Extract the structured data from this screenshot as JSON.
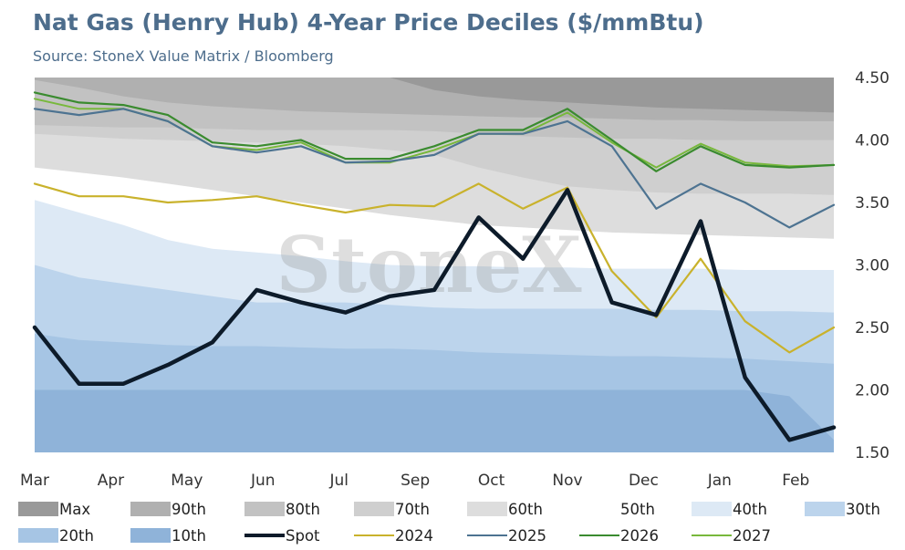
{
  "title": "Nat Gas (Henry Hub) 4-Year Price Deciles ($/mmBtu)",
  "subtitle": "Source: StoneX Value Matrix / Bloomberg",
  "watermark": "StoneX",
  "chart_data": {
    "type": "line",
    "ylim": [
      1.5,
      4.5
    ],
    "y_ticks": [
      "4.50",
      "4.00",
      "3.50",
      "3.00",
      "2.50",
      "2.00",
      "1.50"
    ],
    "y_axis_side": "right",
    "x_ticks": [
      "Mar",
      "Apr",
      "May",
      "Jun",
      "Jul",
      "Sep",
      "Oct",
      "Nov",
      "Dec",
      "Jan",
      "Feb"
    ],
    "grid": false,
    "legend_position": "bottom",
    "x_index": [
      0,
      10,
      20,
      30,
      40,
      50,
      60,
      70,
      80,
      90,
      100,
      110,
      120,
      130,
      140,
      150,
      160,
      170,
      180
    ],
    "bands": [
      {
        "name": "10th",
        "color": "#8fb3d9",
        "values": [
          2.0,
          2.0,
          2.0,
          2.0,
          2.0,
          2.0,
          2.0,
          2.0,
          2.0,
          2.0,
          2.0,
          2.0,
          2.0,
          2.0,
          2.0,
          2.0,
          2.0,
          1.95,
          1.6
        ]
      },
      {
        "name": "20th",
        "color": "#a6c5e4",
        "values": [
          2.45,
          2.4,
          2.38,
          2.36,
          2.35,
          2.35,
          2.34,
          2.33,
          2.33,
          2.32,
          2.3,
          2.29,
          2.28,
          2.27,
          2.27,
          2.26,
          2.25,
          2.23,
          2.21
        ]
      },
      {
        "name": "30th",
        "color": "#bcd4ec",
        "values": [
          3.0,
          2.9,
          2.85,
          2.8,
          2.75,
          2.7,
          2.7,
          2.7,
          2.68,
          2.66,
          2.65,
          2.65,
          2.65,
          2.65,
          2.64,
          2.64,
          2.63,
          2.63,
          2.62
        ]
      },
      {
        "name": "40th",
        "color": "#dde9f5",
        "values": [
          3.52,
          3.42,
          3.32,
          3.2,
          3.13,
          3.1,
          3.07,
          3.03,
          3.0,
          2.99,
          2.99,
          2.98,
          2.98,
          2.97,
          2.97,
          2.97,
          2.96,
          2.96,
          2.96
        ]
      },
      {
        "name": "50th",
        "color": "#ffffff",
        "values": [
          3.78,
          3.74,
          3.7,
          3.65,
          3.6,
          3.55,
          3.5,
          3.45,
          3.4,
          3.36,
          3.32,
          3.3,
          3.28,
          3.26,
          3.25,
          3.24,
          3.23,
          3.22,
          3.21
        ]
      },
      {
        "name": "60th",
        "color": "#dddddd",
        "values": [
          4.05,
          4.03,
          4.01,
          4.0,
          3.99,
          3.98,
          3.97,
          3.95,
          3.92,
          3.88,
          3.78,
          3.7,
          3.63,
          3.6,
          3.58,
          3.57,
          3.57,
          3.57,
          3.56
        ]
      },
      {
        "name": "70th",
        "color": "#cfcfcf",
        "values": [
          4.12,
          4.11,
          4.1,
          4.1,
          4.09,
          4.08,
          4.08,
          4.08,
          4.08,
          4.07,
          4.05,
          4.03,
          4.02,
          4.01,
          4.01,
          4.0,
          4.0,
          4.0,
          4.0
        ]
      },
      {
        "name": "80th",
        "color": "#c2c2c2",
        "values": [
          4.48,
          4.42,
          4.35,
          4.3,
          4.27,
          4.25,
          4.23,
          4.22,
          4.21,
          4.2,
          4.19,
          4.18,
          4.18,
          4.17,
          4.16,
          4.16,
          4.15,
          4.15,
          4.15
        ]
      },
      {
        "name": "90th",
        "color": "#b0b0b0",
        "values": [
          4.5,
          4.5,
          4.5,
          4.5,
          4.5,
          4.5,
          4.5,
          4.5,
          4.5,
          4.4,
          4.35,
          4.32,
          4.3,
          4.28,
          4.26,
          4.25,
          4.24,
          4.23,
          4.22
        ]
      },
      {
        "name": "Max",
        "color": "#999999",
        "values": [
          4.5,
          4.5,
          4.5,
          4.5,
          4.5,
          4.5,
          4.5,
          4.5,
          4.5,
          4.5,
          4.5,
          4.5,
          4.5,
          4.5,
          4.5,
          4.5,
          4.5,
          4.5,
          4.5
        ]
      }
    ],
    "series": [
      {
        "name": "Spot",
        "color": "#0d1b2a",
        "width": 4.5,
        "values": [
          2.5,
          2.05,
          2.05,
          2.2,
          2.38,
          2.8,
          2.7,
          2.62,
          2.75,
          2.8,
          3.38,
          3.05,
          3.6,
          2.7,
          2.6,
          3.35,
          2.1,
          1.6,
          1.7
        ]
      },
      {
        "name": "2024",
        "color": "#c9b22c",
        "width": 2.2,
        "values": [
          3.65,
          3.55,
          3.55,
          3.5,
          3.52,
          3.55,
          3.48,
          3.42,
          3.48,
          3.47,
          3.65,
          3.45,
          3.62,
          2.95,
          2.58,
          3.05,
          2.55,
          2.3,
          2.5
        ]
      },
      {
        "name": "2025",
        "color": "#4d7391",
        "width": 2.2,
        "values": [
          4.25,
          4.2,
          4.25,
          4.15,
          3.95,
          3.9,
          3.95,
          3.82,
          3.83,
          3.88,
          4.05,
          4.05,
          4.15,
          3.95,
          3.45,
          3.65,
          3.5,
          3.3,
          3.48
        ]
      },
      {
        "name": "2026",
        "color": "#3a8b2f",
        "width": 2.2,
        "values": [
          4.38,
          4.3,
          4.28,
          4.2,
          3.98,
          3.95,
          4.0,
          3.85,
          3.85,
          3.95,
          4.08,
          4.08,
          4.25,
          4.0,
          3.75,
          3.95,
          3.8,
          3.78,
          3.8
        ]
      },
      {
        "name": "2027",
        "color": "#78b83c",
        "width": 2.0,
        "values": [
          4.33,
          4.25,
          4.25,
          4.15,
          3.95,
          3.92,
          3.98,
          3.82,
          3.82,
          3.92,
          4.05,
          4.05,
          4.22,
          3.98,
          3.78,
          3.97,
          3.82,
          3.79,
          3.8
        ]
      }
    ]
  },
  "legend": {
    "row1": [
      {
        "name": "Max",
        "kind": "box",
        "color": "#999999"
      },
      {
        "name": "90th",
        "kind": "box",
        "color": "#b0b0b0"
      },
      {
        "name": "80th",
        "kind": "box",
        "color": "#c2c2c2"
      },
      {
        "name": "70th",
        "kind": "box",
        "color": "#cfcfcf"
      },
      {
        "name": "60th",
        "kind": "box",
        "color": "#dddddd"
      },
      {
        "name": "50th",
        "kind": "box",
        "color": "#ffffff"
      },
      {
        "name": "40th",
        "kind": "box",
        "color": "#dde9f5"
      },
      {
        "name": "30th",
        "kind": "box",
        "color": "#bcd4ec"
      }
    ],
    "row2": [
      {
        "name": "20th",
        "kind": "box",
        "color": "#a6c5e4"
      },
      {
        "name": "10th",
        "kind": "box",
        "color": "#8fb3d9"
      },
      {
        "name": "Spot",
        "kind": "line",
        "color": "#0d1b2a"
      },
      {
        "name": "2024",
        "kind": "line",
        "color": "#c9b22c"
      },
      {
        "name": "2025",
        "kind": "line",
        "color": "#4d7391"
      },
      {
        "name": "2026",
        "kind": "line",
        "color": "#3a8b2f"
      },
      {
        "name": "2027",
        "kind": "line",
        "color": "#78b83c"
      }
    ]
  }
}
